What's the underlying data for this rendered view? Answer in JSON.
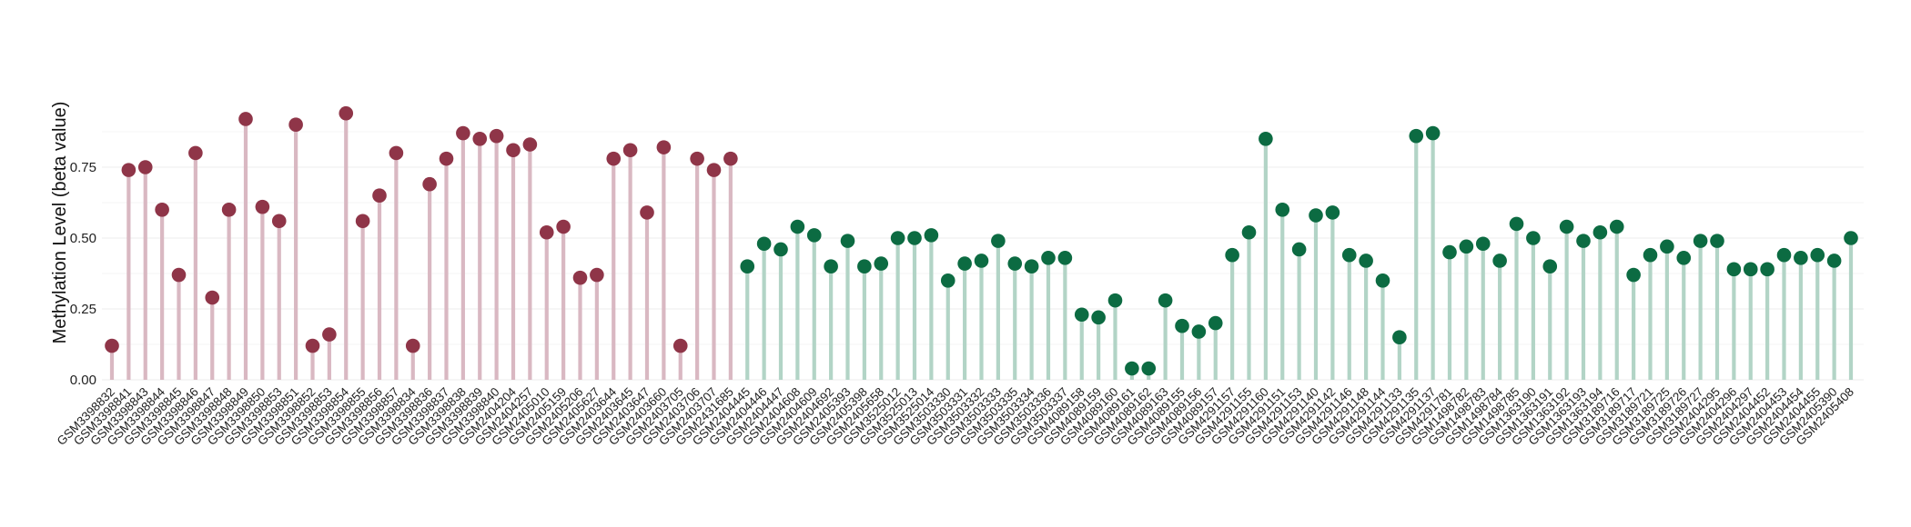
{
  "chart_data": {
    "type": "lollipop",
    "ylabel": "Methylation Level (beta value)",
    "ylim": [
      0,
      1
    ],
    "yticks": [
      "0.00",
      "0.25",
      "0.50",
      "0.75"
    ],
    "grid": true,
    "groups": [
      {
        "stem_color": "#d9b8c2",
        "dot_color": "#8f3548"
      },
      {
        "stem_color": "#b2d4c6",
        "dot_color": "#0c6b42"
      }
    ],
    "samples": [
      {
        "id": "GSM3398832",
        "value": 0.12,
        "group": 0
      },
      {
        "id": "GSM3398841",
        "value": 0.74,
        "group": 0
      },
      {
        "id": "GSM3398843",
        "value": 0.75,
        "group": 0
      },
      {
        "id": "GSM3398844",
        "value": 0.6,
        "group": 0
      },
      {
        "id": "GSM3398845",
        "value": 0.37,
        "group": 0
      },
      {
        "id": "GSM3398846",
        "value": 0.8,
        "group": 0
      },
      {
        "id": "GSM3398847",
        "value": 0.29,
        "group": 0
      },
      {
        "id": "GSM3398848",
        "value": 0.6,
        "group": 0
      },
      {
        "id": "GSM3398849",
        "value": 0.92,
        "group": 0
      },
      {
        "id": "GSM3398850",
        "value": 0.61,
        "group": 0
      },
      {
        "id": "GSM3398853",
        "value": 0.56,
        "group": 0
      },
      {
        "id": "GSM3398851",
        "value": 0.9,
        "group": 0
      },
      {
        "id": "GSM3398852",
        "value": 0.12,
        "group": 0
      },
      {
        "id": "GSM3398853",
        "value": 0.16,
        "group": 0
      },
      {
        "id": "GSM3398854",
        "value": 0.94,
        "group": 0
      },
      {
        "id": "GSM3398855",
        "value": 0.56,
        "group": 0
      },
      {
        "id": "GSM3398856",
        "value": 0.65,
        "group": 0
      },
      {
        "id": "GSM3398857",
        "value": 0.8,
        "group": 0
      },
      {
        "id": "GSM3398834",
        "value": 0.12,
        "group": 0
      },
      {
        "id": "GSM3398836",
        "value": 0.69,
        "group": 0
      },
      {
        "id": "GSM3398837",
        "value": 0.78,
        "group": 0
      },
      {
        "id": "GSM3398838",
        "value": 0.87,
        "group": 0
      },
      {
        "id": "GSM3398839",
        "value": 0.85,
        "group": 0
      },
      {
        "id": "GSM3398840",
        "value": 0.86,
        "group": 0
      },
      {
        "id": "GSM2404204",
        "value": 0.81,
        "group": 0
      },
      {
        "id": "GSM2404257",
        "value": 0.83,
        "group": 0
      },
      {
        "id": "GSM2405010",
        "value": 0.52,
        "group": 0
      },
      {
        "id": "GSM2405159",
        "value": 0.54,
        "group": 0
      },
      {
        "id": "GSM2405206",
        "value": 0.36,
        "group": 0
      },
      {
        "id": "GSM2405627",
        "value": 0.37,
        "group": 0
      },
      {
        "id": "GSM2403644",
        "value": 0.78,
        "group": 0
      },
      {
        "id": "GSM2403645",
        "value": 0.81,
        "group": 0
      },
      {
        "id": "GSM2403647",
        "value": 0.59,
        "group": 0
      },
      {
        "id": "GSM2403660",
        "value": 0.82,
        "group": 0
      },
      {
        "id": "GSM2403705",
        "value": 0.12,
        "group": 0
      },
      {
        "id": "GSM2403706",
        "value": 0.78,
        "group": 0
      },
      {
        "id": "GSM2403707",
        "value": 0.74,
        "group": 0
      },
      {
        "id": "GSM2431685",
        "value": 0.78,
        "group": 0
      },
      {
        "id": "GSM2404445",
        "value": 0.4,
        "group": 1
      },
      {
        "id": "GSM2404446",
        "value": 0.48,
        "group": 1
      },
      {
        "id": "GSM2404447",
        "value": 0.46,
        "group": 1
      },
      {
        "id": "GSM2404608",
        "value": 0.54,
        "group": 1
      },
      {
        "id": "GSM2404609",
        "value": 0.51,
        "group": 1
      },
      {
        "id": "GSM2404692",
        "value": 0.4,
        "group": 1
      },
      {
        "id": "GSM2405393",
        "value": 0.49,
        "group": 1
      },
      {
        "id": "GSM2405398",
        "value": 0.4,
        "group": 1
      },
      {
        "id": "GSM2405658",
        "value": 0.41,
        "group": 1
      },
      {
        "id": "GSM3525012",
        "value": 0.5,
        "group": 1
      },
      {
        "id": "GSM3525013",
        "value": 0.5,
        "group": 1
      },
      {
        "id": "GSM3525014",
        "value": 0.51,
        "group": 1
      },
      {
        "id": "GSM3503330",
        "value": 0.35,
        "group": 1
      },
      {
        "id": "GSM3503331",
        "value": 0.41,
        "group": 1
      },
      {
        "id": "GSM3503332",
        "value": 0.42,
        "group": 1
      },
      {
        "id": "GSM3503333",
        "value": 0.49,
        "group": 1
      },
      {
        "id": "GSM3503335",
        "value": 0.41,
        "group": 1
      },
      {
        "id": "GSM3503334",
        "value": 0.4,
        "group": 1
      },
      {
        "id": "GSM3503336",
        "value": 0.43,
        "group": 1
      },
      {
        "id": "GSM3503337",
        "value": 0.43,
        "group": 1
      },
      {
        "id": "GSM4089158",
        "value": 0.23,
        "group": 1
      },
      {
        "id": "GSM4089159",
        "value": 0.22,
        "group": 1
      },
      {
        "id": "GSM4089160",
        "value": 0.28,
        "group": 1
      },
      {
        "id": "GSM4089161",
        "value": 0.04,
        "group": 1
      },
      {
        "id": "GSM4089162",
        "value": 0.04,
        "group": 1
      },
      {
        "id": "GSM4089163",
        "value": 0.28,
        "group": 1
      },
      {
        "id": "GSM4089155",
        "value": 0.19,
        "group": 1
      },
      {
        "id": "GSM4089156",
        "value": 0.17,
        "group": 1
      },
      {
        "id": "GSM4089157",
        "value": 0.2,
        "group": 1
      },
      {
        "id": "GSM4291157",
        "value": 0.44,
        "group": 1
      },
      {
        "id": "GSM4291155",
        "value": 0.52,
        "group": 1
      },
      {
        "id": "GSM4291160",
        "value": 0.85,
        "group": 1
      },
      {
        "id": "GSM4291151",
        "value": 0.6,
        "group": 1
      },
      {
        "id": "GSM4291153",
        "value": 0.46,
        "group": 1
      },
      {
        "id": "GSM4291140",
        "value": 0.58,
        "group": 1
      },
      {
        "id": "GSM4291142",
        "value": 0.59,
        "group": 1
      },
      {
        "id": "GSM4291146",
        "value": 0.44,
        "group": 1
      },
      {
        "id": "GSM4291148",
        "value": 0.42,
        "group": 1
      },
      {
        "id": "GSM4291144",
        "value": 0.35,
        "group": 1
      },
      {
        "id": "GSM4291133",
        "value": 0.15,
        "group": 1
      },
      {
        "id": "GSM4291135",
        "value": 0.86,
        "group": 1
      },
      {
        "id": "GSM4291137",
        "value": 0.87,
        "group": 1
      },
      {
        "id": "GSM4291781",
        "value": 0.45,
        "group": 1
      },
      {
        "id": "GSM1498782",
        "value": 0.47,
        "group": 1
      },
      {
        "id": "GSM1498783",
        "value": 0.48,
        "group": 1
      },
      {
        "id": "GSM1498784",
        "value": 0.42,
        "group": 1
      },
      {
        "id": "GSM1498785",
        "value": 0.55,
        "group": 1
      },
      {
        "id": "GSM1363190",
        "value": 0.5,
        "group": 1
      },
      {
        "id": "GSM1363191",
        "value": 0.4,
        "group": 1
      },
      {
        "id": "GSM1363192",
        "value": 0.54,
        "group": 1
      },
      {
        "id": "GSM1363193",
        "value": 0.49,
        "group": 1
      },
      {
        "id": "GSM1363194",
        "value": 0.52,
        "group": 1
      },
      {
        "id": "GSM3189716",
        "value": 0.54,
        "group": 1
      },
      {
        "id": "GSM3189717",
        "value": 0.37,
        "group": 1
      },
      {
        "id": "GSM3189721",
        "value": 0.44,
        "group": 1
      },
      {
        "id": "GSM3189725",
        "value": 0.47,
        "group": 1
      },
      {
        "id": "GSM3189726",
        "value": 0.43,
        "group": 1
      },
      {
        "id": "GSM3189727",
        "value": 0.49,
        "group": 1
      },
      {
        "id": "GSM2404295",
        "value": 0.49,
        "group": 1
      },
      {
        "id": "GSM2404296",
        "value": 0.39,
        "group": 1
      },
      {
        "id": "GSM2404297",
        "value": 0.39,
        "group": 1
      },
      {
        "id": "GSM2404452",
        "value": 0.39,
        "group": 1
      },
      {
        "id": "GSM2404453",
        "value": 0.44,
        "group": 1
      },
      {
        "id": "GSM2404454",
        "value": 0.43,
        "group": 1
      },
      {
        "id": "GSM2404455",
        "value": 0.44,
        "group": 1
      },
      {
        "id": "GSM2405390",
        "value": 0.42,
        "group": 1
      },
      {
        "id": "GSM2405408",
        "value": 0.5,
        "group": 1
      }
    ]
  }
}
